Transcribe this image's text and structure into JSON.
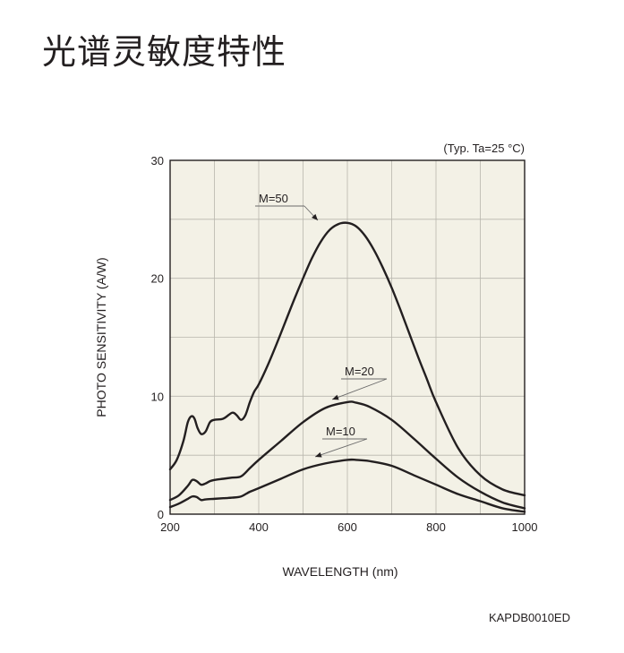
{
  "page": {
    "title": "光谱灵敏度特性"
  },
  "chart_data": {
    "type": "line",
    "title": "",
    "xlabel": "WAVELENGTH (nm)",
    "ylabel": "PHOTO SENSITIVITY (A/W)",
    "xlim": [
      200,
      1000
    ],
    "ylim": [
      0,
      30
    ],
    "x_ticks": [
      200,
      400,
      600,
      800,
      1000
    ],
    "y_ticks": [
      0,
      10,
      20,
      30
    ],
    "grid": true,
    "condition_note": "(Typ. Ta=25 °C)",
    "figure_code": "KAPDB0010ED",
    "colors": {
      "plot_background": "#f3f1e6",
      "grid": "#b8b6ad",
      "line": "#231f20"
    },
    "series": [
      {
        "name": "M=50",
        "x": [
          200,
          215,
          230,
          240,
          248,
          255,
          262,
          270,
          280,
          290,
          300,
          320,
          340,
          350,
          360,
          370,
          380,
          390,
          400,
          420,
          440,
          460,
          480,
          500,
          520,
          540,
          560,
          580,
          600,
          620,
          640,
          660,
          680,
          700,
          720,
          740,
          760,
          780,
          800,
          850,
          900,
          950,
          1000
        ],
        "y": [
          3.8,
          4.6,
          6.2,
          7.8,
          8.3,
          8.1,
          7.3,
          6.8,
          7.0,
          7.8,
          8.0,
          8.1,
          8.6,
          8.4,
          8.0,
          8.4,
          9.5,
          10.4,
          11.0,
          12.6,
          14.4,
          16.3,
          18.2,
          20.0,
          21.7,
          23.1,
          24.1,
          24.6,
          24.7,
          24.4,
          23.6,
          22.4,
          20.9,
          19.2,
          17.3,
          15.3,
          13.3,
          11.4,
          9.5,
          5.6,
          3.3,
          2.1,
          1.6
        ]
      },
      {
        "name": "M=20",
        "x": [
          200,
          220,
          240,
          250,
          260,
          270,
          280,
          290,
          300,
          320,
          340,
          360,
          380,
          400,
          450,
          500,
          550,
          600,
          620,
          650,
          700,
          750,
          800,
          850,
          900,
          950,
          1000
        ],
        "y": [
          1.2,
          1.6,
          2.4,
          2.9,
          2.8,
          2.5,
          2.6,
          2.8,
          2.9,
          3.0,
          3.1,
          3.2,
          3.9,
          4.6,
          6.2,
          7.8,
          9.0,
          9.5,
          9.45,
          9.1,
          8.0,
          6.4,
          4.7,
          3.1,
          1.9,
          1.0,
          0.5
        ]
      },
      {
        "name": "M=10",
        "x": [
          200,
          220,
          240,
          250,
          260,
          270,
          280,
          300,
          320,
          340,
          360,
          380,
          400,
          450,
          500,
          550,
          600,
          620,
          650,
          700,
          750,
          800,
          850,
          900,
          950,
          1000
        ],
        "y": [
          0.6,
          0.9,
          1.3,
          1.5,
          1.45,
          1.2,
          1.25,
          1.3,
          1.35,
          1.4,
          1.5,
          1.9,
          2.2,
          3.0,
          3.8,
          4.3,
          4.6,
          4.6,
          4.5,
          4.1,
          3.3,
          2.5,
          1.7,
          1.1,
          0.5,
          0.2
        ]
      }
    ],
    "series_labels": [
      {
        "series": "M=50",
        "text": "M=50"
      },
      {
        "series": "M=20",
        "text": "M=20"
      },
      {
        "series": "M=10",
        "text": "M=10"
      }
    ]
  }
}
